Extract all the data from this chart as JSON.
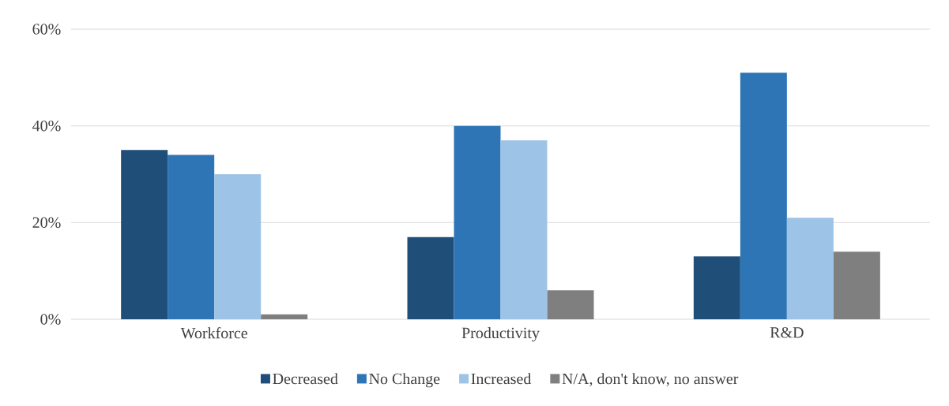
{
  "chart_data": {
    "type": "bar",
    "categories": [
      "Workforce",
      "Productivity",
      "R&D"
    ],
    "series": [
      {
        "name": "Decreased",
        "color": "#1f4e79",
        "values": [
          35,
          17,
          13
        ]
      },
      {
        "name": "No Change",
        "color": "#2e75b6",
        "values": [
          34,
          40,
          51
        ]
      },
      {
        "name": "Increased",
        "color": "#9dc3e6",
        "values": [
          30,
          37,
          21
        ]
      },
      {
        "name": "N/A, don't know, no answer",
        "color": "#7f7f7f",
        "values": [
          1,
          6,
          14
        ]
      }
    ],
    "ylim": [
      0,
      60
    ],
    "yticks": [
      {
        "value": 0,
        "label": "0%"
      },
      {
        "value": 20,
        "label": "20%"
      },
      {
        "value": 40,
        "label": "40%"
      },
      {
        "value": 60,
        "label": "60%"
      }
    ],
    "grid": "y",
    "legend": "bottom"
  }
}
